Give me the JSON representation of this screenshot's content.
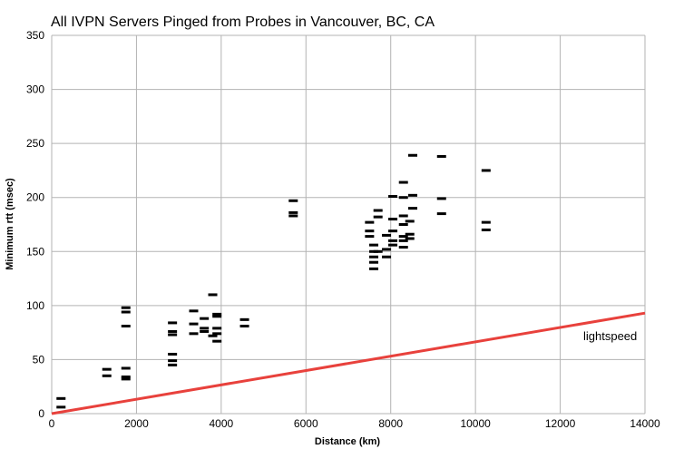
{
  "chart_data": {
    "type": "scatter",
    "title": "All IVPN Servers Pinged from Probes in Vancouver, BC, CA",
    "xlabel": "Distance (km)",
    "ylabel": "Minimum rtt (msec)",
    "xlim": [
      0,
      14000
    ],
    "ylim": [
      0,
      350
    ],
    "x_ticks": [
      0,
      2000,
      4000,
      6000,
      8000,
      10000,
      12000,
      14000
    ],
    "y_ticks": [
      0,
      50,
      100,
      150,
      200,
      250,
      300,
      350
    ],
    "grid": true,
    "marker_color": "#000000",
    "points": [
      [
        220,
        14
      ],
      [
        220,
        6
      ],
      [
        1300,
        41
      ],
      [
        1300,
        35
      ],
      [
        1750,
        98
      ],
      [
        1750,
        94
      ],
      [
        1750,
        81
      ],
      [
        1750,
        42
      ],
      [
        1750,
        34
      ],
      [
        1750,
        32
      ],
      [
        2850,
        84
      ],
      [
        2850,
        76
      ],
      [
        2850,
        73
      ],
      [
        2850,
        55
      ],
      [
        2850,
        49
      ],
      [
        2850,
        45
      ],
      [
        3350,
        95
      ],
      [
        3350,
        83
      ],
      [
        3350,
        74
      ],
      [
        3600,
        88
      ],
      [
        3600,
        79
      ],
      [
        3600,
        76
      ],
      [
        3800,
        110
      ],
      [
        3800,
        72
      ],
      [
        3900,
        92
      ],
      [
        3900,
        90
      ],
      [
        3900,
        79
      ],
      [
        3900,
        74
      ],
      [
        3900,
        67
      ],
      [
        4550,
        87
      ],
      [
        4550,
        81
      ],
      [
        5700,
        197
      ],
      [
        5700,
        186
      ],
      [
        5700,
        183
      ],
      [
        7500,
        177
      ],
      [
        7500,
        169
      ],
      [
        7500,
        164
      ],
      [
        7600,
        156
      ],
      [
        7600,
        150
      ],
      [
        7600,
        145
      ],
      [
        7600,
        140
      ],
      [
        7600,
        134
      ],
      [
        7700,
        188
      ],
      [
        7700,
        182
      ],
      [
        7700,
        150
      ],
      [
        7900,
        165
      ],
      [
        7900,
        152
      ],
      [
        7900,
        145
      ],
      [
        8050,
        201
      ],
      [
        8050,
        180
      ],
      [
        8050,
        169
      ],
      [
        8050,
        160
      ],
      [
        8050,
        156
      ],
      [
        8300,
        214
      ],
      [
        8300,
        200
      ],
      [
        8300,
        183
      ],
      [
        8300,
        175
      ],
      [
        8300,
        164
      ],
      [
        8300,
        160
      ],
      [
        8300,
        154
      ],
      [
        8450,
        178
      ],
      [
        8450,
        166
      ],
      [
        8450,
        162
      ],
      [
        8520,
        239
      ],
      [
        8520,
        202
      ],
      [
        8520,
        190
      ],
      [
        9200,
        238
      ],
      [
        9200,
        199
      ],
      [
        9200,
        185
      ],
      [
        10250,
        225
      ],
      [
        10250,
        177
      ],
      [
        10250,
        170
      ]
    ],
    "lightspeed": {
      "label": "lightspeed",
      "color": "#e8413c",
      "points": [
        [
          0,
          0
        ],
        [
          14000,
          93
        ]
      ]
    }
  }
}
